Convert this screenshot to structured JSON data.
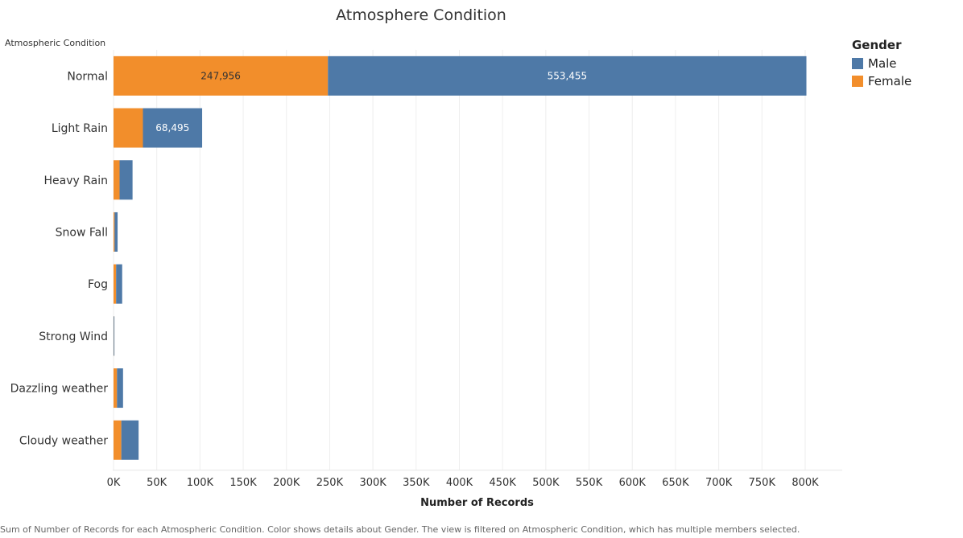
{
  "chart_data": {
    "type": "bar",
    "orientation": "horizontal",
    "stacked": true,
    "title": "Atmosphere Condition",
    "ylabel": "Atmospheric Condition",
    "xlabel": "Number of Records",
    "categories": [
      "Normal",
      "Light Rain",
      "Heavy Rain",
      "Snow Fall",
      "Fog",
      "Strong Wind",
      "Dazzling weather",
      "Cloudy weather"
    ],
    "series": [
      {
        "name": "Female",
        "color": "#f28e2b",
        "values": [
          247956,
          34000,
          7000,
          1200,
          3000,
          200,
          4000,
          9000
        ]
      },
      {
        "name": "Male",
        "color": "#4e79a7",
        "values": [
          553455,
          68495,
          15000,
          3500,
          7000,
          800,
          7000,
          20000
        ]
      }
    ],
    "data_labels": [
      {
        "category": "Normal",
        "series": "Female",
        "text": "247,956"
      },
      {
        "category": "Normal",
        "series": "Male",
        "text": "553,455"
      },
      {
        "category": "Light Rain",
        "series": "Male",
        "text": "68,495"
      }
    ],
    "xlim": [
      0,
      800000
    ],
    "xticks": [
      0,
      50000,
      100000,
      150000,
      200000,
      250000,
      300000,
      350000,
      400000,
      450000,
      500000,
      550000,
      600000,
      650000,
      700000,
      750000,
      800000
    ],
    "xtick_labels": [
      "0K",
      "50K",
      "100K",
      "150K",
      "200K",
      "250K",
      "300K",
      "350K",
      "400K",
      "450K",
      "500K",
      "550K",
      "600K",
      "650K",
      "700K",
      "750K",
      "800K"
    ],
    "grid": true,
    "legend": {
      "title": "Gender",
      "position": "top-right",
      "entries": [
        {
          "label": "Male",
          "color": "#4e79a7"
        },
        {
          "label": "Female",
          "color": "#f28e2b"
        }
      ]
    }
  },
  "caption": "Sum of Number of Records for each Atmospheric Condition.  Color shows details about Gender. The view is filtered on Atmospheric Condition, which has multiple members selected."
}
